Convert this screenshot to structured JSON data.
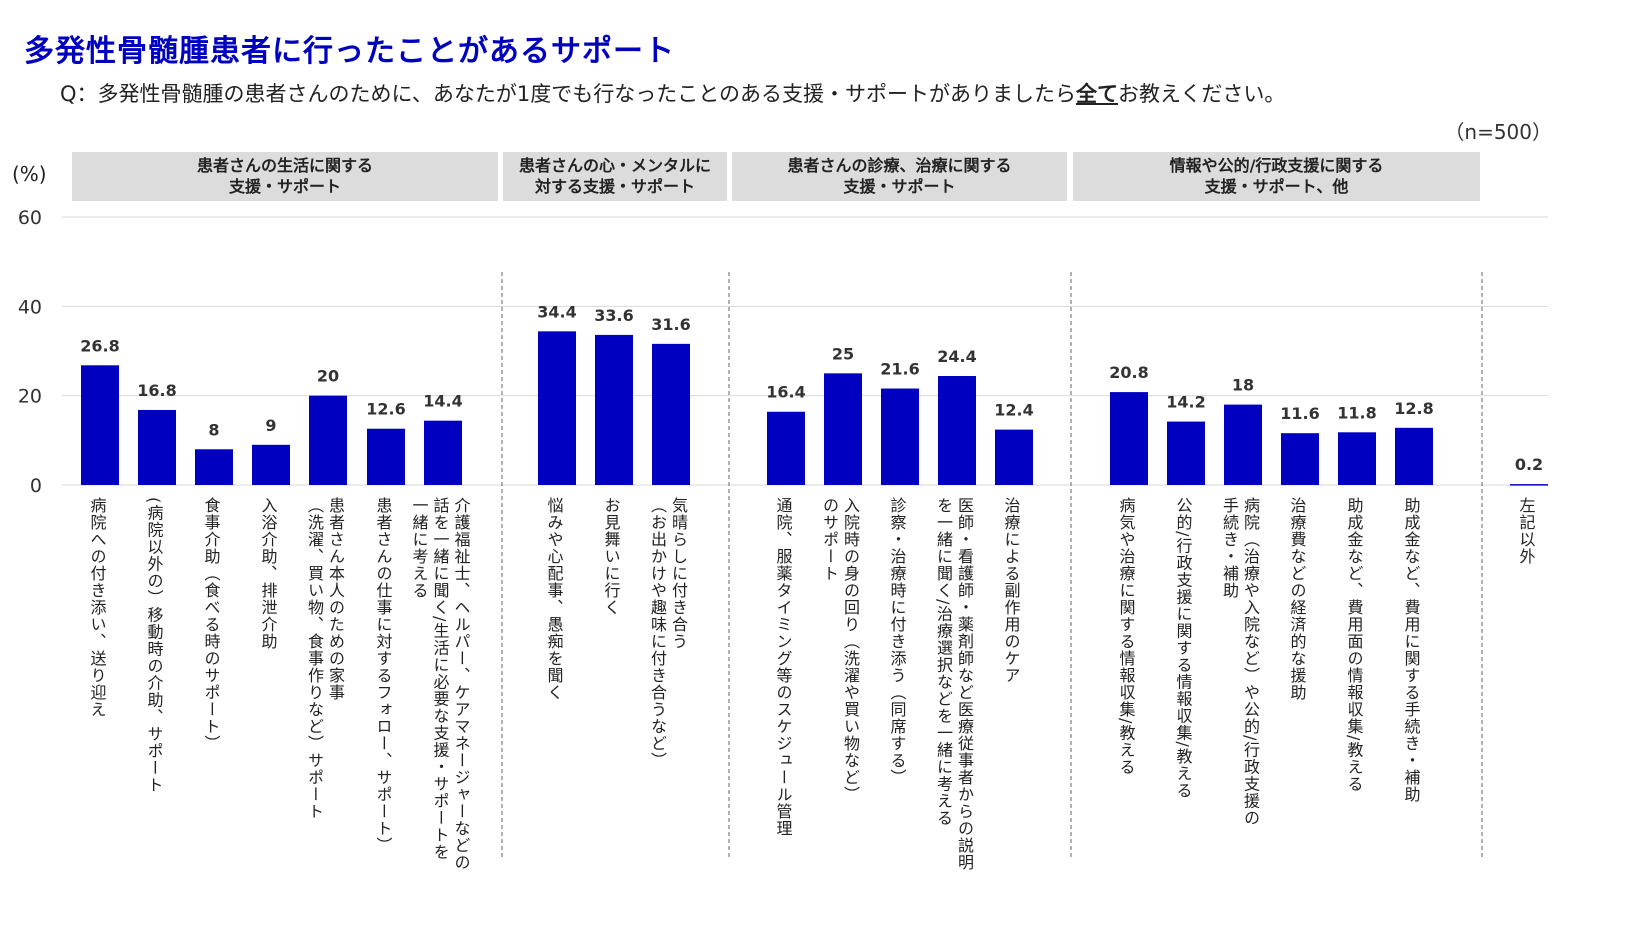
{
  "title": "多発性骨髄腫患者に行ったことがあるサポート",
  "question_prefix": "Q：多発性骨髄腫の患者さんのために、あなたが1度でも行なったことのある支援・サポートがありましたら",
  "question_emph": "全て",
  "question_suffix": "お教えください。",
  "sample": "（n=500）",
  "colors": {
    "bar": "#0000c0",
    "title": "#0000c0",
    "group_bg": "#dcdcdc"
  },
  "chart_data": {
    "type": "bar",
    "ylabel": "(%)",
    "ylim": [
      0,
      60
    ],
    "yticks": [
      "0",
      "20",
      "40",
      "60"
    ],
    "grid": true,
    "groups": [
      {
        "label": "患者さんの生活に関する\n支援・サポート",
        "start": 0,
        "end": 6
      },
      {
        "label": "患者さんの心・メンタルに\n対する支援・サポート",
        "start": 7,
        "end": 9
      },
      {
        "label": "患者さんの診療、治療に関する\n支援・サポート",
        "start": 10,
        "end": 14
      },
      {
        "label": "情報や公的/行政支援に関する\n支援・サポート、他",
        "start": 15,
        "end": 20
      }
    ],
    "categories": [
      "病院への付き添い、送り迎え",
      "(病院以外の）移動時の介助、サポート",
      "食事介助（食べる時のサポート）",
      "入浴介助、排泄介助",
      "患者さん本人のための家事\n（洗濯、買い物、食事作りなど）サポート",
      "患者さんの仕事に対するフォロー、サポート）",
      "介護福祉士、ヘルパー、ケアマネージャーなどの\n話を一緒に聞く/生活に必要な支援・サポートを\n一緒に考える",
      "悩みや心配事、愚痴を聞く",
      "お見舞いに行く",
      "気晴らしに付き合う\n（お出かけや趣味に付き合うなど）",
      "通院、服薬タイミング等のスケジュール管理",
      "入院時の身の回り（洗濯や買い物など）\nのサポート",
      "診察・治療時に付き添う（同席する）",
      "医師・看護師・薬剤師など医療従事者からの説明\nを一緒に聞く/治療選択などを一緒に考える",
      "治療による副作用のケア",
      "病気や治療に関する情報収集/教える",
      "公的/行政支援に関する情報収集/教える",
      "病院（治療や入院など）や公的/行政支援の\n手続き・補助",
      "治療費などの経済的な援助",
      "助成金など、費用面の情報収集/教える",
      "助成金など、費用に関する手続き・補助",
      "左記以外"
    ],
    "values": [
      26.8,
      16.8,
      8,
      9,
      20,
      12.6,
      14.4,
      34.4,
      33.6,
      31.6,
      16.4,
      25,
      21.6,
      24.4,
      12.4,
      20.8,
      14.2,
      18,
      11.6,
      11.8,
      12.8,
      0.2
    ]
  }
}
